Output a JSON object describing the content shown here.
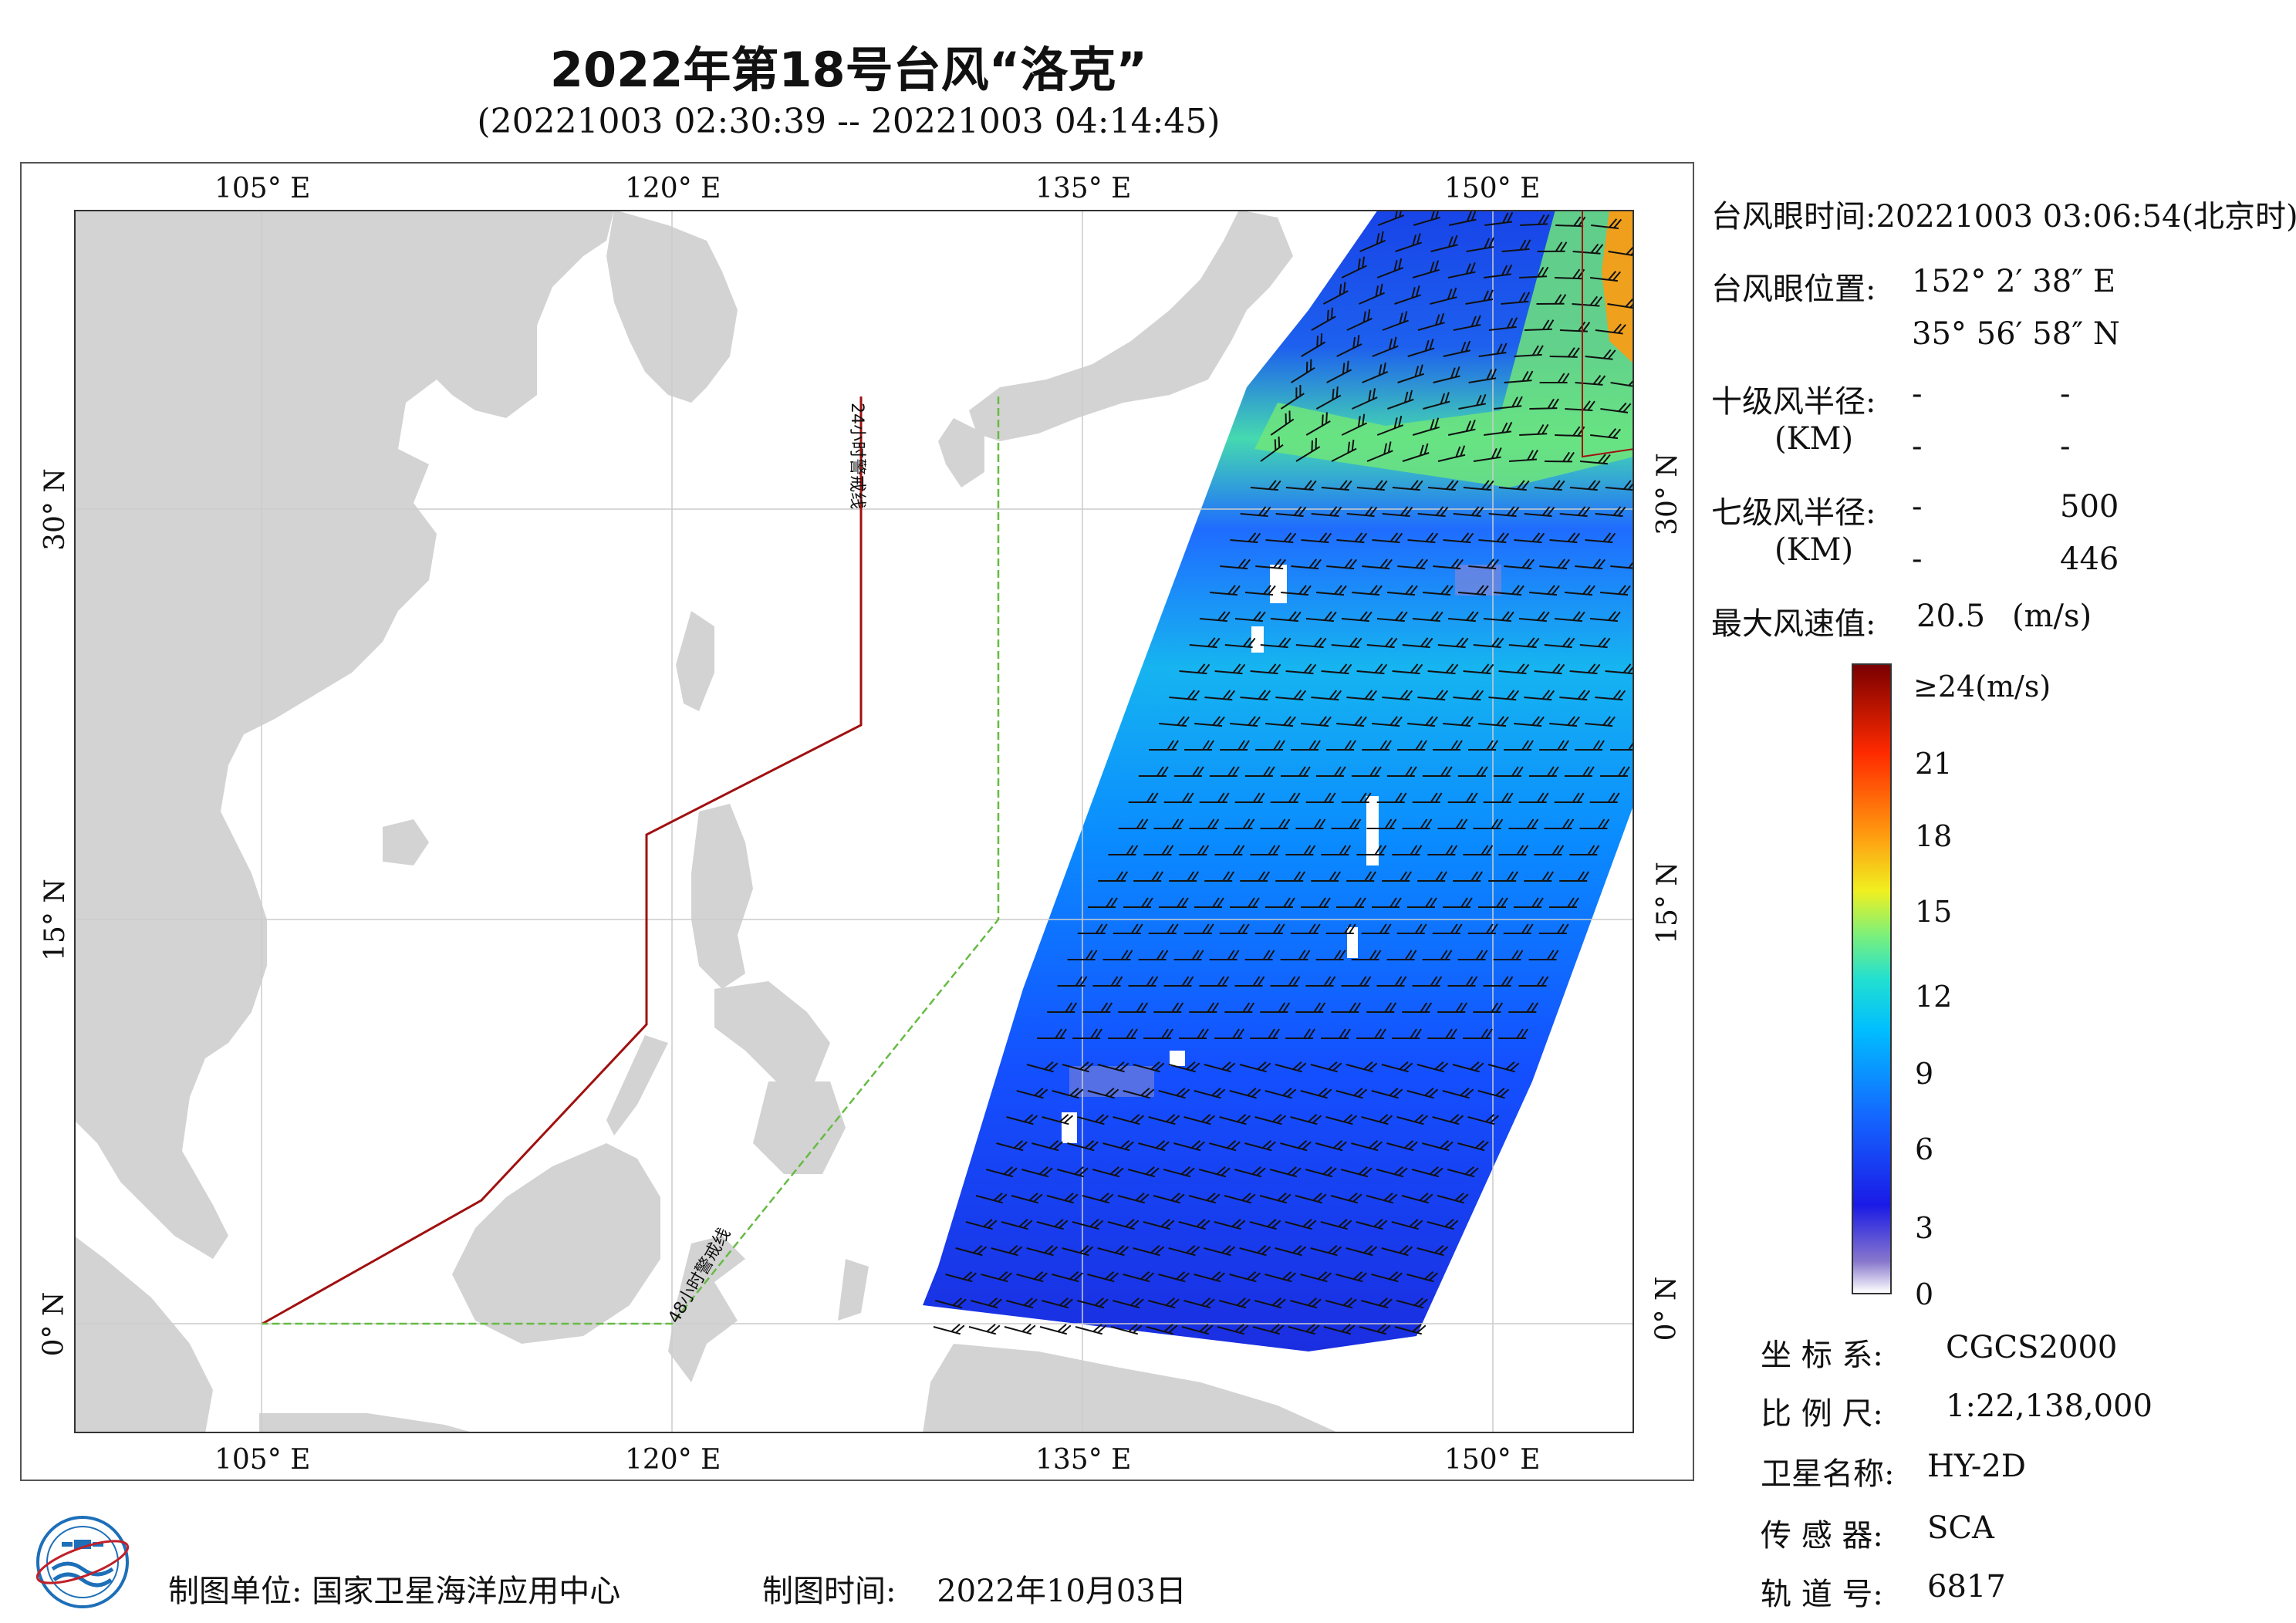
{
  "title": "2022年第18号台风“洛克”",
  "subtitle": "(20221003 02:30:39 -- 20221003 04:14:45)",
  "map": {
    "lon_ticks": [
      "105° E",
      "120° E",
      "135° E",
      "150° E"
    ],
    "lat_ticks": [
      "30° N",
      "15° N",
      "0° N"
    ],
    "line_24h_label": "24小时警戒线",
    "line_48h_label": "48小时警戒线",
    "colors": {
      "land": "#d3d3d3",
      "sea": "#ffffff",
      "line_24h": "#a01010",
      "line_48h": "#66bb44",
      "barb": "#111111"
    }
  },
  "info": {
    "eye_time_label": "台风眼时间:",
    "eye_time_value": "20221003 03:06:54(北京时)",
    "eye_pos_label": "台风眼位置:",
    "eye_lon": "152° 2′ 38″ E",
    "eye_lat": "35° 56′ 58″ N",
    "r10_label": "十级风半径:",
    "r10_unit": "(KM)",
    "r10_values": [
      "-",
      "-",
      "-",
      "-"
    ],
    "r7_label": "七级风半径:",
    "r7_unit": "(KM)",
    "r7_values": [
      "-",
      "500",
      "-",
      "446"
    ],
    "max_wind_label": "最大风速值:",
    "max_wind_value": "20.5",
    "max_wind_unit": "(m/s)"
  },
  "legend": {
    "ticks": [
      "≥24(m/s)",
      "21",
      "18",
      "15",
      "12",
      "9",
      "6",
      "3",
      "0"
    ]
  },
  "meta": {
    "coord_label": "坐 标 系:",
    "coord_value": "CGCS2000",
    "scale_label": "比 例 尺:",
    "scale_value": "1:22,138,000",
    "satellite_label": "卫星名称:",
    "satellite_value": "HY-2D",
    "sensor_label": "传 感 器:",
    "sensor_value": "SCA",
    "orbit_label": "轨 道 号:",
    "orbit_value": "6817"
  },
  "footer": {
    "org_label": "制图单位:",
    "org_value": "国家卫星海洋应用中心",
    "date_label": "制图时间:",
    "date_value": "2022年10月03日"
  }
}
